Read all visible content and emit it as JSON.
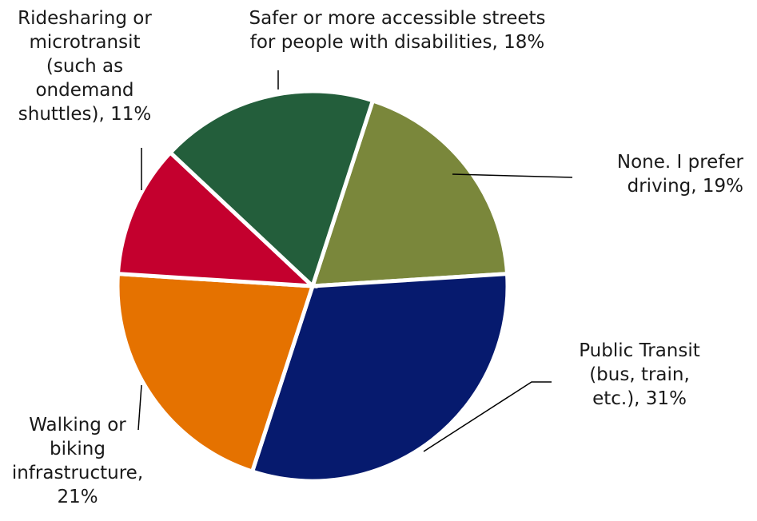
{
  "chart_data": {
    "type": "pie",
    "slices": [
      {
        "label": "None. I prefer driving",
        "value": 19,
        "color": "#7A873B",
        "label_lines": [
          "None. I prefer",
          "driving, 19%"
        ]
      },
      {
        "label": "Public Transit (bus, train, etc.)",
        "value": 31,
        "color": "#061A6E",
        "label_lines": [
          "Public Transit",
          "(bus, train,",
          "etc.), 31%"
        ]
      },
      {
        "label": "Walking or biking infrastructure",
        "value": 21,
        "color": "#E57200",
        "label_lines": [
          "Walking or",
          "biking",
          "infrastructure,",
          "21%"
        ]
      },
      {
        "label": "Ridesharing or microtransit (such as ondemand shuttles)",
        "value": 11,
        "color": "#C4002E",
        "label_lines": [
          "Ridesharing or",
          "microtransit",
          "(such as",
          "ondemand",
          "shuttles), 11%"
        ]
      },
      {
        "label": "Safer or more accessible streets for people with disabilities",
        "value": 18,
        "color": "#235E3B",
        "label_lines": [
          "Safer or more accessible streets",
          "for people with disabilities, 18%"
        ]
      }
    ],
    "start_angle_deg": 18,
    "direction": "clockwise",
    "legend": "none"
  }
}
